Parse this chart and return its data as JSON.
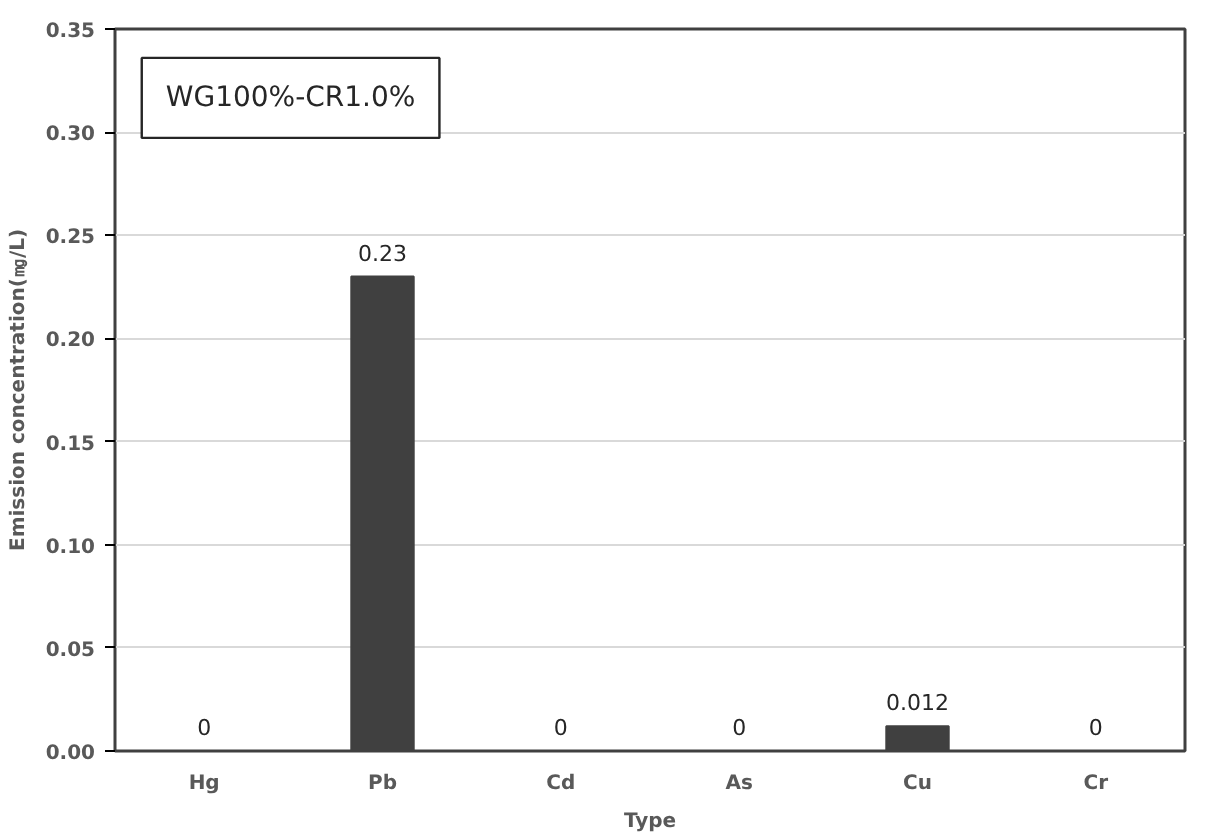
{
  "chart_data": {
    "type": "bar",
    "title": "WG100%-CR1.0%",
    "xlabel": "Type",
    "ylabel": "Emission concentration(㎎/L)",
    "categories": [
      "Hg",
      "Pb",
      "Cd",
      "As",
      "Cu",
      "Cr"
    ],
    "values": [
      0,
      0.23,
      0,
      0,
      0.012,
      0
    ],
    "color": "#404040",
    "ylim": [
      0,
      0.35
    ],
    "yticks": [
      {
        "value": 0,
        "label": "0.00"
      },
      {
        "value": 0.05,
        "label": "0.05"
      },
      {
        "value": 0.1,
        "label": "0.10"
      },
      {
        "value": 0.15,
        "label": "0.15"
      },
      {
        "value": 0.2,
        "label": "0.20"
      },
      {
        "value": 0.25,
        "label": "0.25"
      },
      {
        "value": 0.3,
        "label": "0.30"
      },
      {
        "value": 0.35,
        "label": "0.35"
      }
    ],
    "grid": "y",
    "data_labels": true
  }
}
